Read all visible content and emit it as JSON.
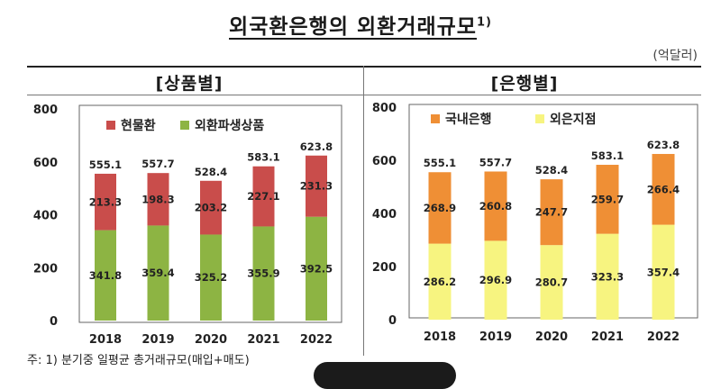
{
  "title": "외국환은행의 외환거래규모",
  "title_sup": "1)",
  "unit": "(억달러)",
  "footnote": "주: 1) 분기중 일평균 총거래규모(매입+매도)",
  "colors": {
    "spot": "#c94d4b",
    "derivative": "#8db443",
    "domestic": "#ef8f35",
    "foreign": "#f7f480"
  },
  "chart_data": [
    {
      "type": "bar",
      "stacked": true,
      "title": "[상품별]",
      "categories": [
        "2018",
        "2019",
        "2020",
        "2021",
        "2022"
      ],
      "series": [
        {
          "name": "외환파생상품",
          "values": [
            341.8,
            359.4,
            325.2,
            355.9,
            392.5
          ]
        },
        {
          "name": "현물환",
          "values": [
            213.3,
            198.3,
            203.2,
            227.1,
            231.3
          ]
        }
      ],
      "totals": [
        555.1,
        557.7,
        528.4,
        583.1,
        623.8
      ],
      "legend_order": [
        "현물환",
        "외환파생상품"
      ],
      "y_ticks": [
        0,
        200,
        400,
        600,
        800
      ],
      "ylim": [
        0,
        800
      ],
      "legend": "top-left",
      "grid": false
    },
    {
      "type": "bar",
      "stacked": true,
      "title": "[은행별]",
      "categories": [
        "2018",
        "2019",
        "2020",
        "2021",
        "2022"
      ],
      "series": [
        {
          "name": "외은지점",
          "values": [
            286.2,
            296.9,
            280.7,
            323.3,
            357.4
          ]
        },
        {
          "name": "국내은행",
          "values": [
            268.9,
            260.8,
            247.7,
            259.7,
            266.4
          ]
        }
      ],
      "totals": [
        555.1,
        557.7,
        528.4,
        583.1,
        623.8
      ],
      "legend_order": [
        "국내은행",
        "외은지점"
      ],
      "y_ticks": [
        0,
        200,
        400,
        600,
        800
      ],
      "ylim": [
        0,
        800
      ],
      "legend": "top-left",
      "grid": false
    }
  ]
}
